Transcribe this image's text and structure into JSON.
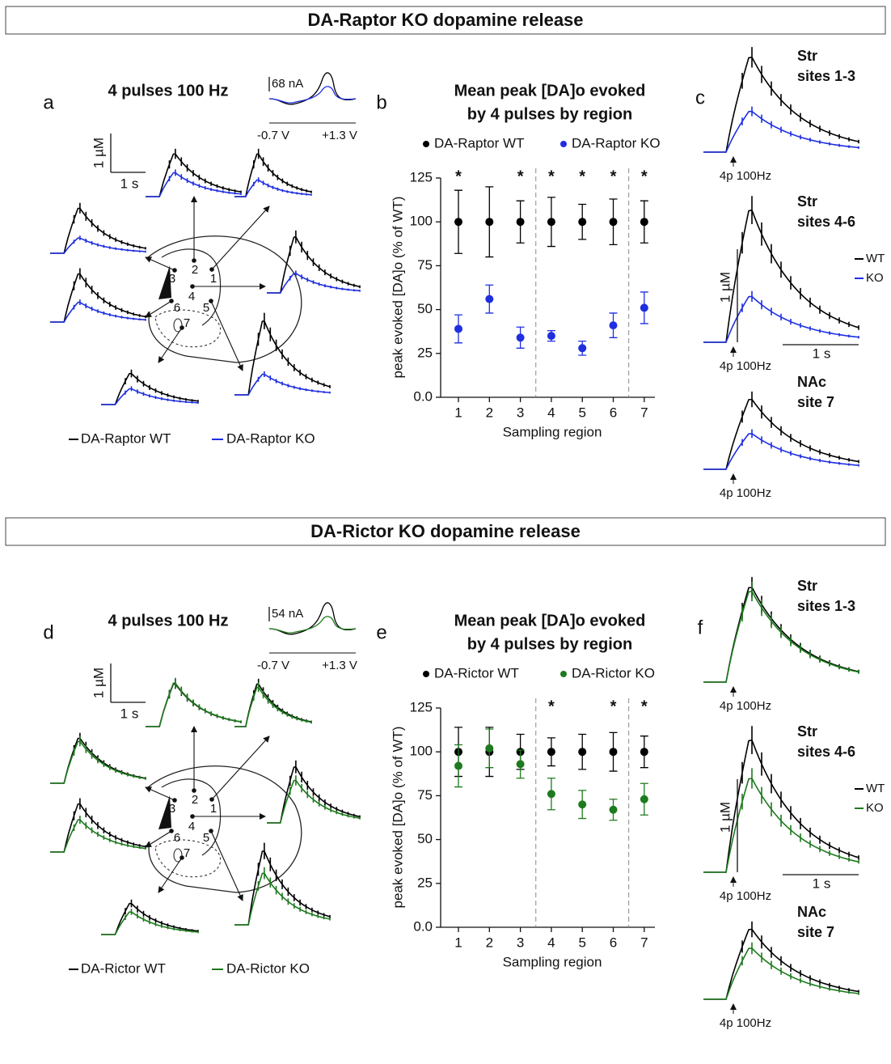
{
  "sections": [
    {
      "title": "DA-Raptor KO dopamine release",
      "panel_labels": [
        "a",
        "b",
        "c"
      ],
      "traces": {
        "title": "4 pulses 100 Hz",
        "cv_current": "68 nA",
        "cv_v_start": "-0.7 V",
        "cv_v_end": "+1.3 V",
        "scale_y": "1 µM",
        "scale_x": "1 s",
        "sites": [
          "1",
          "2",
          "3",
          "4",
          "5",
          "6",
          "7"
        ]
      },
      "regions": {
        "groups": [
          {
            "name": "Str",
            "sites": "sites 1-3"
          },
          {
            "name": "Str",
            "sites": "sites 4-6"
          },
          {
            "name": "NAc",
            "sites": "site 7"
          }
        ],
        "stimulus": "4p 100Hz",
        "scale_y": "1 µM",
        "scale_x": "1 s",
        "legend": [
          "WT",
          "KO"
        ]
      }
    },
    {
      "title": "DA-Rictor KO dopamine release",
      "panel_labels": [
        "d",
        "e",
        "f"
      ],
      "traces": {
        "title": "4 pulses 100 Hz",
        "cv_current": "54 nA",
        "cv_v_start": "-0.7 V",
        "cv_v_end": "+1.3 V",
        "scale_y": "1 µM",
        "scale_x": "1 s",
        "sites": [
          "1",
          "2",
          "3",
          "4",
          "5",
          "6",
          "7"
        ]
      },
      "regions": {
        "groups": [
          {
            "name": "Str",
            "sites": "sites 1-3"
          },
          {
            "name": "Str",
            "sites": "sites 4-6"
          },
          {
            "name": "NAc",
            "sites": "site 7"
          }
        ],
        "stimulus": "4p 100Hz",
        "scale_y": "1 µM",
        "scale_x": "1 s",
        "legend": [
          "WT",
          "KO"
        ]
      }
    }
  ],
  "chart_data": [
    {
      "type": "errorbar",
      "title": [
        "Mean peak [DA]o evoked",
        "by 4 pulses by region"
      ],
      "xlabel": "Sampling region",
      "ylabel": "peak evoked [DA]o (% of WT)",
      "categories": [
        "1",
        "2",
        "3",
        "4",
        "5",
        "6",
        "7"
      ],
      "series": [
        {
          "name": "DA-Raptor WT",
          "color": "#000000",
          "values": [
            100,
            100,
            100,
            100,
            100,
            100,
            100
          ],
          "errors": [
            18,
            20,
            12,
            14,
            10,
            13,
            12
          ]
        },
        {
          "name": "DA-Raptor KO",
          "color": "#1f2fe0",
          "values": [
            39,
            56,
            34,
            35,
            28,
            41,
            51
          ],
          "errors": [
            8,
            8,
            6,
            3,
            4,
            7,
            9
          ]
        }
      ],
      "significance": [
        "*",
        null,
        "*",
        "*",
        "*",
        "*",
        "*"
      ],
      "ylim": [
        0,
        125
      ],
      "yticks": [
        {
          "value": 0,
          "label": "0.0"
        },
        25,
        50,
        75,
        100,
        125
      ]
    },
    {
      "type": "errorbar",
      "title": [
        "Mean peak [DA]o evoked",
        "by 4 pulses by region"
      ],
      "xlabel": "Sampling region",
      "ylabel": "peak evoked [DA]o (% of WT)",
      "categories": [
        "1",
        "2",
        "3",
        "4",
        "5",
        "6",
        "7"
      ],
      "series": [
        {
          "name": "DA-Rictor WT",
          "color": "#000000",
          "values": [
            100,
            100,
            100,
            100,
            100,
            100,
            100
          ],
          "errors": [
            14,
            14,
            10,
            8,
            10,
            11,
            9
          ]
        },
        {
          "name": "DA-Rictor KO",
          "color": "#1e7a1e",
          "values": [
            92,
            102,
            93,
            76,
            70,
            67,
            73
          ],
          "errors": [
            12,
            11,
            8,
            9,
            8,
            6,
            9
          ]
        }
      ],
      "significance": [
        null,
        null,
        null,
        "*",
        null,
        "*",
        "*"
      ],
      "ylim": [
        0,
        125
      ],
      "yticks": [
        {
          "value": 0,
          "label": "0.0"
        },
        25,
        50,
        75,
        100,
        125
      ]
    }
  ]
}
